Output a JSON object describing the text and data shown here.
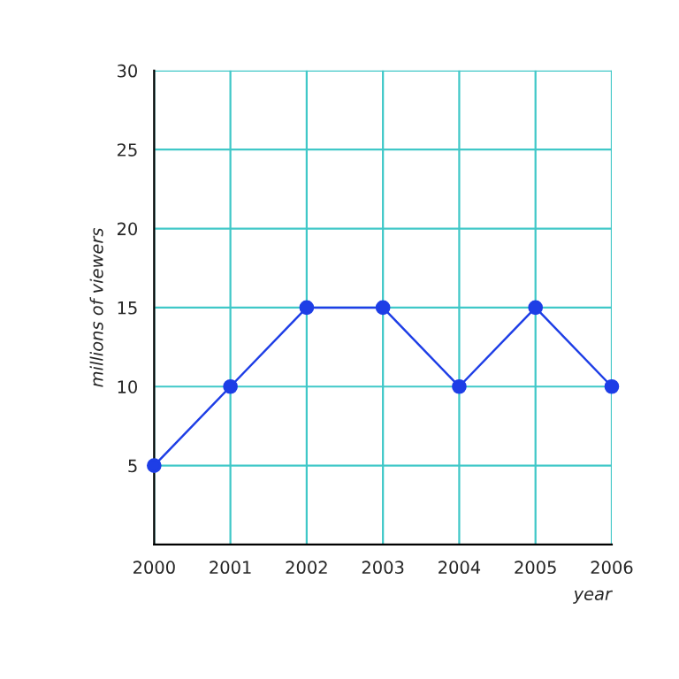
{
  "chart_data": {
    "type": "line",
    "xlabel": "year",
    "ylabel": "millions of viewers",
    "x": [
      2000,
      2001,
      2002,
      2003,
      2004,
      2005,
      2006
    ],
    "series": [
      {
        "color": "#1e3ee6",
        "values": [
          5,
          10,
          15,
          15,
          10,
          15,
          10
        ]
      }
    ],
    "xlim": [
      2000,
      2006
    ],
    "ylim": [
      0,
      30
    ],
    "xticks": [
      2000,
      2001,
      2002,
      2003,
      2004,
      2005,
      2006
    ],
    "yticks": [
      5,
      10,
      15,
      20,
      25,
      30
    ],
    "grid": true,
    "marker": "circle",
    "line_style": "solid"
  }
}
